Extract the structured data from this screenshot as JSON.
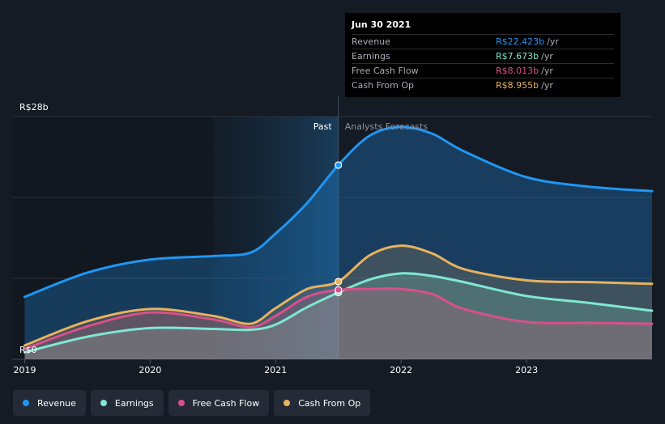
{
  "chart_data": {
    "type": "area",
    "y_unit": "R$b",
    "ylim": [
      0,
      28
    ],
    "y_top_label": "R$28b",
    "y_bottom_label": "R$0",
    "x_range": [
      2018.9,
      2024.0
    ],
    "x_ticks": [
      2019,
      2020,
      2021,
      2022,
      2023
    ],
    "x_tick_labels": [
      "2019",
      "2020",
      "2021",
      "2022",
      "2023"
    ],
    "past_label": "Past",
    "forecast_label": "Analysts Forecasts",
    "divider_x": 2021.5,
    "past_band_start": 2020.5,
    "series": [
      {
        "name": "Revenue",
        "color": "#2196f3",
        "x": [
          2019.0,
          2019.5,
          2020.0,
          2020.5,
          2020.8,
          2021.0,
          2021.25,
          2021.5,
          2021.75,
          2022.0,
          2022.25,
          2022.5,
          2023.0,
          2023.5,
          2024.0
        ],
        "y": [
          7.2,
          10.0,
          11.5,
          11.9,
          12.3,
          14.5,
          18.0,
          22.4,
          25.8,
          26.8,
          26.0,
          24.0,
          21.0,
          19.9,
          19.4
        ]
      },
      {
        "name": "Earnings",
        "color": "#7fe7d2",
        "x": [
          2019.0,
          2019.5,
          2020.0,
          2020.5,
          2020.8,
          2021.0,
          2021.25,
          2021.5,
          2021.75,
          2022.0,
          2022.25,
          2022.5,
          2023.0,
          2023.5,
          2024.0
        ],
        "y": [
          0.8,
          2.6,
          3.6,
          3.5,
          3.4,
          4.0,
          6.0,
          7.7,
          9.2,
          9.9,
          9.6,
          8.9,
          7.3,
          6.5,
          5.6
        ]
      },
      {
        "name": "Free Cash Flow",
        "color": "#d9508a",
        "x": [
          2019.0,
          2019.5,
          2020.0,
          2020.5,
          2020.8,
          2021.0,
          2021.25,
          2021.5,
          2021.75,
          2022.0,
          2022.25,
          2022.5,
          2023.0,
          2023.5,
          2024.0
        ],
        "y": [
          1.2,
          3.8,
          5.4,
          4.6,
          3.7,
          5.0,
          7.2,
          8.0,
          8.1,
          8.1,
          7.5,
          5.8,
          4.3,
          4.2,
          4.1
        ]
      },
      {
        "name": "Cash From Op",
        "color": "#e8b15e",
        "x": [
          2019.0,
          2019.5,
          2020.0,
          2020.5,
          2020.8,
          2021.0,
          2021.25,
          2021.5,
          2021.75,
          2022.0,
          2022.25,
          2022.5,
          2023.0,
          2023.5,
          2024.0
        ],
        "y": [
          1.6,
          4.4,
          5.8,
          5.0,
          4.1,
          5.9,
          8.1,
          8.96,
          12.0,
          13.1,
          12.2,
          10.4,
          9.1,
          8.9,
          8.7
        ]
      }
    ],
    "highlight_x": 2021.5
  },
  "tooltip": {
    "date": "Jun 30 2021",
    "rows": [
      {
        "label": "Revenue",
        "value": "R$22.423b",
        "unit": "/yr",
        "color": "#2196f3"
      },
      {
        "label": "Earnings",
        "value": "R$7.673b",
        "unit": "/yr",
        "color": "#7fe7d2"
      },
      {
        "label": "Free Cash Flow",
        "value": "R$8.013b",
        "unit": "/yr",
        "color": "#d9508a"
      },
      {
        "label": "Cash From Op",
        "value": "R$8.955b",
        "unit": "/yr",
        "color": "#e8b15e"
      }
    ]
  },
  "legend": [
    {
      "label": "Revenue",
      "color": "#2196f3"
    },
    {
      "label": "Earnings",
      "color": "#7fe7d2"
    },
    {
      "label": "Free Cash Flow",
      "color": "#d9508a"
    },
    {
      "label": "Cash From Op",
      "color": "#e8b15e"
    }
  ]
}
